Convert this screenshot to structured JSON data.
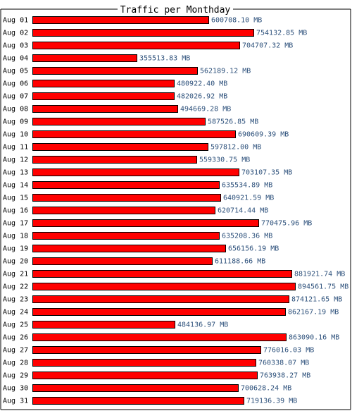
{
  "chart_data": {
    "type": "bar",
    "orientation": "horizontal",
    "title": "Traffic per Monthday",
    "unit": "MB",
    "categories": [
      "Aug 01",
      "Aug 02",
      "Aug 03",
      "Aug 04",
      "Aug 05",
      "Aug 06",
      "Aug 07",
      "Aug 08",
      "Aug 09",
      "Aug 10",
      "Aug 11",
      "Aug 12",
      "Aug 13",
      "Aug 14",
      "Aug 15",
      "Aug 16",
      "Aug 17",
      "Aug 18",
      "Aug 19",
      "Aug 20",
      "Aug 21",
      "Aug 22",
      "Aug 23",
      "Aug 24",
      "Aug 25",
      "Aug 26",
      "Aug 27",
      "Aug 28",
      "Aug 29",
      "Aug 30",
      "Aug 31"
    ],
    "values": [
      600708.1,
      754132.85,
      704707.32,
      355513.83,
      562189.12,
      480922.4,
      482026.92,
      494669.28,
      587526.85,
      690609.39,
      597812.0,
      559330.75,
      703107.35,
      635534.89,
      640921.59,
      620714.44,
      770475.96,
      635208.36,
      656156.19,
      611188.66,
      881921.74,
      894561.75,
      874121.65,
      862167.19,
      484136.97,
      863090.16,
      776016.03,
      760338.07,
      763938.27,
      700628.24,
      719136.39
    ],
    "value_labels": [
      "600708.10 MB",
      "754132.85 MB",
      "704707.32 MB",
      "355513.83 MB",
      "562189.12 MB",
      "480922.40 MB",
      "482026.92 MB",
      "494669.28 MB",
      "587526.85 MB",
      "690609.39 MB",
      "597812.00 MB",
      "559330.75 MB",
      "703107.35 MB",
      "635534.89 MB",
      "640921.59 MB",
      "620714.44 MB",
      "770475.96 MB",
      "635208.36 MB",
      "656156.19 MB",
      "611188.66 MB",
      "881921.74 MB",
      "894561.75 MB",
      "874121.65 MB",
      "862167.19 MB",
      "484136.97 MB",
      "863090.16 MB",
      "776016.03 MB",
      "760338.07 MB",
      "763938.27 MB",
      "700628.24 MB",
      "719136.39 MB"
    ],
    "colors": {
      "bar": "#ff0000",
      "bar_border": "#000000",
      "frame": "#000000",
      "value_text": "#2b4f7a",
      "label_text": "#000000"
    },
    "grid": false,
    "legend": "none"
  }
}
